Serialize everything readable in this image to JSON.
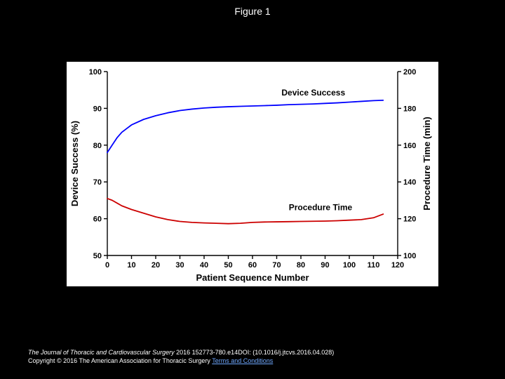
{
  "figure_title": "Figure 1",
  "chart": {
    "type": "line",
    "background_color": "#ffffff",
    "axis_color": "#000000",
    "axis_linewidth": 1.4,
    "tick_font_size": 11,
    "tick_font_weight": "bold",
    "label_font_size": 13,
    "label_font_weight": "bold",
    "xlabel": "Patient Sequence Number",
    "ylabel_left": "Device Success (%)",
    "ylabel_right": "Procedure Time (min)",
    "xlim": [
      0,
      120
    ],
    "xtick_step": 10,
    "ylim_left": [
      50,
      100
    ],
    "ytick_step_left": 10,
    "ylim_right": [
      100,
      200
    ],
    "ytick_step_right": 20,
    "series": [
      {
        "name": "Device Success",
        "axis": "left",
        "color": "#0000ff",
        "linewidth": 1.8,
        "label_xy": [
          72,
          93.5
        ],
        "x": [
          0,
          2,
          4,
          6,
          8,
          10,
          15,
          20,
          25,
          30,
          35,
          40,
          45,
          50,
          55,
          60,
          65,
          70,
          75,
          80,
          85,
          90,
          95,
          100,
          105,
          110,
          114
        ],
        "y": [
          78,
          80,
          82,
          83.5,
          84.5,
          85.5,
          87,
          88,
          88.8,
          89.4,
          89.8,
          90.1,
          90.3,
          90.45,
          90.55,
          90.65,
          90.75,
          90.85,
          91.0,
          91.1,
          91.2,
          91.35,
          91.5,
          91.7,
          91.9,
          92.1,
          92.2
        ]
      },
      {
        "name": "Procedure Time",
        "axis": "right",
        "color": "#cc0000",
        "linewidth": 1.8,
        "label_xy": [
          75,
          62.3
        ],
        "x": [
          0,
          2,
          4,
          6,
          8,
          10,
          15,
          20,
          25,
          30,
          35,
          40,
          45,
          50,
          55,
          60,
          65,
          70,
          75,
          80,
          85,
          90,
          95,
          100,
          105,
          110,
          114
        ],
        "y": [
          131,
          130,
          128.5,
          127,
          126,
          125,
          123,
          121,
          119.5,
          118.5,
          118,
          117.7,
          117.5,
          117.3,
          117.5,
          118,
          118.2,
          118.3,
          118.4,
          118.5,
          118.6,
          118.7,
          118.9,
          119.2,
          119.5,
          120.5,
          122.5
        ]
      }
    ]
  },
  "footer": {
    "citation_journal": "The Journal of Thoracic and Cardiovascular Surgery",
    "citation_rest": " 2016 152773-780.e14DOI: (10.1016/j.jtcvs.2016.04.028)",
    "copyright_prefix": "Copyright © 2016 The American Association for Thoracic Surgery ",
    "terms_link_text": "Terms and Conditions"
  }
}
